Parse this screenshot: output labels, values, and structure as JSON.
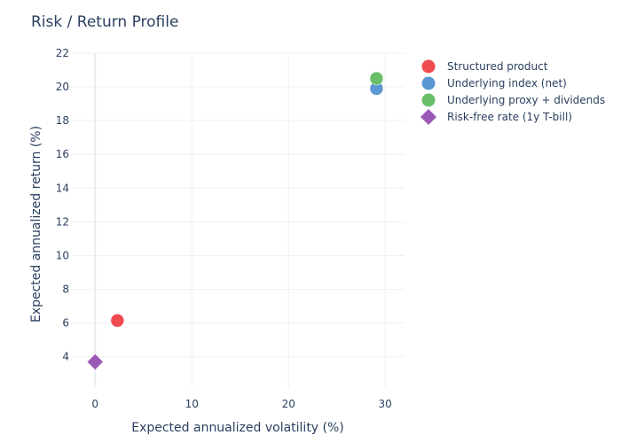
{
  "chart_data": {
    "type": "scatter",
    "title": "Risk / Return Profile",
    "xlabel": "Expected annualized volatility (%)",
    "ylabel": "Expected annualized return (%)",
    "xlim": [
      -2.5,
      32
    ],
    "ylim": [
      2.2,
      22
    ],
    "xticks": [
      0,
      10,
      20,
      30
    ],
    "yticks": [
      4,
      6,
      8,
      10,
      12,
      14,
      16,
      18,
      20,
      22
    ],
    "grid": true,
    "legend_position": "top-right, outside plot",
    "series": [
      {
        "name": "Structured product",
        "color": "#ef4a4f",
        "marker": "circle",
        "x": 2.3,
        "y": 6.15
      },
      {
        "name": "Underlying index (net)",
        "color": "#5b97d3",
        "marker": "circle",
        "x": 29.1,
        "y": 19.9
      },
      {
        "name": "Underlying proxy + dividends",
        "color": "#6abf69",
        "marker": "circle",
        "x": 29.1,
        "y": 20.5
      },
      {
        "name": "Risk-free rate (1y T-bill)",
        "color": "#9b59b6",
        "marker": "diamond",
        "x": 0.0,
        "y": 3.7
      }
    ]
  }
}
